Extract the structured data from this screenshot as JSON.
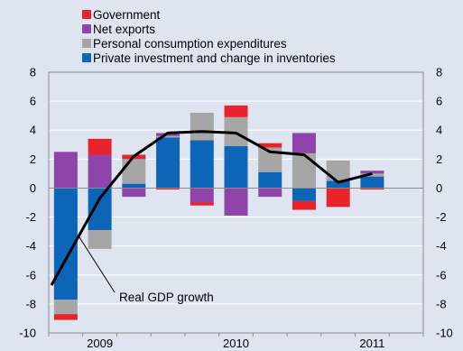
{
  "chart_data": {
    "type": "bar",
    "stacked": true,
    "legend_position": "top-left",
    "x_tick_labels": [
      "2009",
      "2010",
      "2011"
    ],
    "x_tick_label_quarter_index": [
      1,
      5,
      9
    ],
    "ylim": [
      -10,
      8
    ],
    "yticks": [
      8,
      6,
      4,
      2,
      0,
      -2,
      -4,
      -6,
      -8,
      -10
    ],
    "quarter_count": 11,
    "series": [
      {
        "name": "Private investment and change in inventories",
        "color": "#0d65b8",
        "values": [
          -7.7,
          -2.9,
          0.3,
          3.5,
          3.3,
          2.9,
          1.1,
          -0.9,
          0.5,
          0.8,
          0
        ]
      },
      {
        "name": "Personal consumption expenditures",
        "color": "#a6a6a6",
        "values": [
          -1.0,
          -1.3,
          1.7,
          0.1,
          1.9,
          2.0,
          1.7,
          2.4,
          1.4,
          0.2,
          0
        ]
      },
      {
        "name": "Net exports",
        "color": "#8e44a8",
        "values": [
          2.5,
          2.3,
          -0.6,
          0.2,
          -1.0,
          -1.9,
          -0.6,
          1.4,
          0,
          0.2,
          0
        ]
      },
      {
        "name": "Government",
        "color": "#e8232b",
        "values": [
          -0.4,
          1.1,
          0.3,
          -0.1,
          -0.2,
          0.8,
          0.3,
          -0.6,
          -1.3,
          -0.1,
          0
        ]
      }
    ],
    "line_series": {
      "name": "Real GDP growth",
      "color": "#000000",
      "values": [
        -6.7,
        -0.7,
        2.2,
        3.8,
        3.9,
        3.8,
        2.5,
        2.3,
        0.4,
        1.0,
        null
      ]
    },
    "annotation": "Real GDP growth"
  }
}
